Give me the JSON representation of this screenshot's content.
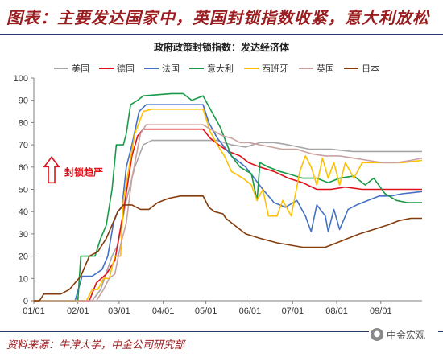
{
  "header": {
    "title": "图表：主要发达国家中，英国封锁指数收紧，意大利放松"
  },
  "footer": {
    "source": "资料来源：牛津大学，中金公司研究部",
    "brand": "中金宏观",
    "brand_icon": "wechat-icon"
  },
  "chart_data": {
    "type": "line",
    "title": "政府政策封锁指数：发达经济体",
    "xlabel": "",
    "ylabel": "",
    "ylim": [
      0,
      100
    ],
    "yticks": [
      0,
      10,
      20,
      30,
      40,
      50,
      60,
      70,
      80,
      90,
      100
    ],
    "xlim": [
      1,
      274
    ],
    "xticks": [
      {
        "label": "01/01",
        "x": 1
      },
      {
        "label": "02/01",
        "x": 32
      },
      {
        "label": "03/01",
        "x": 61
      },
      {
        "label": "04/01",
        "x": 92
      },
      {
        "label": "05/01",
        "x": 122
      },
      {
        "label": "06/01",
        "x": 153
      },
      {
        "label": "07/01",
        "x": 183
      },
      {
        "label": "08/01",
        "x": 214
      },
      {
        "label": "09/01",
        "x": 245
      }
    ],
    "grid": false,
    "legend_position": "top",
    "annotation": {
      "text": "封锁趋严",
      "x": 35,
      "y": 58,
      "color": "#e0111b"
    },
    "series": [
      {
        "name": "美国",
        "color": "#a6a6a6",
        "points": [
          [
            1,
            0
          ],
          [
            42,
            0
          ],
          [
            48,
            5
          ],
          [
            56,
            20
          ],
          [
            60,
            25
          ],
          [
            66,
            45
          ],
          [
            72,
            60
          ],
          [
            78,
            70
          ],
          [
            84,
            72
          ],
          [
            100,
            72
          ],
          [
            130,
            72
          ],
          [
            140,
            70
          ],
          [
            150,
            69
          ],
          [
            160,
            71
          ],
          [
            170,
            71
          ],
          [
            180,
            70
          ],
          [
            195,
            68
          ],
          [
            210,
            68
          ],
          [
            225,
            67
          ],
          [
            240,
            67
          ],
          [
            255,
            67
          ],
          [
            274,
            67
          ]
        ]
      },
      {
        "name": "德国",
        "color": "#e0111b",
        "points": [
          [
            1,
            0
          ],
          [
            40,
            0
          ],
          [
            45,
            8
          ],
          [
            52,
            12
          ],
          [
            58,
            18
          ],
          [
            64,
            40
          ],
          [
            70,
            65
          ],
          [
            74,
            74
          ],
          [
            78,
            77
          ],
          [
            120,
            77
          ],
          [
            125,
            73
          ],
          [
            131,
            70
          ],
          [
            138,
            67
          ],
          [
            146,
            65
          ],
          [
            152,
            62
          ],
          [
            160,
            60
          ],
          [
            170,
            58
          ],
          [
            180,
            55
          ],
          [
            190,
            53
          ],
          [
            200,
            50
          ],
          [
            210,
            50
          ],
          [
            220,
            51
          ],
          [
            232,
            50
          ],
          [
            245,
            50
          ],
          [
            260,
            50
          ],
          [
            274,
            50
          ]
        ]
      },
      {
        "name": "法国",
        "color": "#4472c4",
        "points": [
          [
            1,
            0
          ],
          [
            30,
            0
          ],
          [
            35,
            11
          ],
          [
            42,
            11
          ],
          [
            49,
            14
          ],
          [
            53,
            20
          ],
          [
            57,
            35
          ],
          [
            60,
            40
          ],
          [
            63,
            42
          ],
          [
            66,
            60
          ],
          [
            70,
            70
          ],
          [
            75,
            85
          ],
          [
            80,
            88
          ],
          [
            120,
            88
          ],
          [
            124,
            80
          ],
          [
            130,
            73
          ],
          [
            140,
            65
          ],
          [
            150,
            60
          ],
          [
            156,
            55
          ],
          [
            162,
            50
          ],
          [
            170,
            44
          ],
          [
            178,
            42
          ],
          [
            186,
            45
          ],
          [
            192,
            38
          ],
          [
            196,
            31
          ],
          [
            200,
            43
          ],
          [
            206,
            38
          ],
          [
            208,
            31
          ],
          [
            212,
            41
          ],
          [
            216,
            32
          ],
          [
            222,
            41
          ],
          [
            228,
            43
          ],
          [
            236,
            45
          ],
          [
            244,
            47
          ],
          [
            252,
            47
          ],
          [
            260,
            48
          ],
          [
            274,
            49
          ]
        ]
      },
      {
        "name": "意大利",
        "color": "#1a9a47",
        "points": [
          [
            1,
            0
          ],
          [
            32,
            0
          ],
          [
            34,
            20
          ],
          [
            44,
            20
          ],
          [
            48,
            28
          ],
          [
            52,
            34
          ],
          [
            56,
            50
          ],
          [
            59,
            70
          ],
          [
            64,
            70
          ],
          [
            66,
            75
          ],
          [
            69,
            88
          ],
          [
            74,
            90
          ],
          [
            78,
            92
          ],
          [
            98,
            93
          ],
          [
            106,
            93
          ],
          [
            112,
            90
          ],
          [
            120,
            92
          ],
          [
            126,
            85
          ],
          [
            132,
            78
          ],
          [
            140,
            65
          ],
          [
            146,
            60
          ],
          [
            154,
            57
          ],
          [
            158,
            45
          ],
          [
            160,
            62
          ],
          [
            166,
            60
          ],
          [
            174,
            58
          ],
          [
            180,
            57
          ],
          [
            190,
            55
          ],
          [
            200,
            55
          ],
          [
            208,
            53
          ],
          [
            216,
            55
          ],
          [
            226,
            56
          ],
          [
            234,
            52
          ],
          [
            240,
            55
          ],
          [
            248,
            48
          ],
          [
            256,
            45
          ],
          [
            264,
            44
          ],
          [
            274,
            44
          ]
        ]
      },
      {
        "name": "西班牙",
        "color": "#ffc000",
        "points": [
          [
            1,
            0
          ],
          [
            38,
            0
          ],
          [
            42,
            5
          ],
          [
            46,
            5
          ],
          [
            50,
            10
          ],
          [
            54,
            10
          ],
          [
            58,
            20
          ],
          [
            62,
            20
          ],
          [
            64,
            45
          ],
          [
            68,
            60
          ],
          [
            72,
            75
          ],
          [
            78,
            85
          ],
          [
            84,
            86
          ],
          [
            100,
            86
          ],
          [
            120,
            86
          ],
          [
            125,
            76
          ],
          [
            130,
            70
          ],
          [
            135,
            65
          ],
          [
            140,
            58
          ],
          [
            148,
            55
          ],
          [
            154,
            52
          ],
          [
            158,
            45
          ],
          [
            162,
            50
          ],
          [
            166,
            38
          ],
          [
            172,
            38
          ],
          [
            176,
            45
          ],
          [
            182,
            38
          ],
          [
            188,
            58
          ],
          [
            192,
            65
          ],
          [
            196,
            60
          ],
          [
            200,
            52
          ],
          [
            204,
            64
          ],
          [
            208,
            55
          ],
          [
            212,
            62
          ],
          [
            216,
            52
          ],
          [
            220,
            62
          ],
          [
            226,
            55
          ],
          [
            232,
            62
          ],
          [
            240,
            62
          ],
          [
            250,
            62
          ],
          [
            260,
            62
          ],
          [
            274,
            63
          ]
        ]
      },
      {
        "name": "英国",
        "color": "#c8a2a0",
        "points": [
          [
            1,
            0
          ],
          [
            45,
            0
          ],
          [
            50,
            5
          ],
          [
            54,
            10
          ],
          [
            58,
            12
          ],
          [
            62,
            25
          ],
          [
            66,
            35
          ],
          [
            70,
            55
          ],
          [
            76,
            75
          ],
          [
            80,
            79
          ],
          [
            100,
            79
          ],
          [
            120,
            79
          ],
          [
            128,
            76
          ],
          [
            134,
            74
          ],
          [
            140,
            73
          ],
          [
            146,
            71
          ],
          [
            152,
            71
          ],
          [
            160,
            70
          ],
          [
            168,
            69
          ],
          [
            176,
            68
          ],
          [
            186,
            68
          ],
          [
            196,
            66
          ],
          [
            206,
            65
          ],
          [
            216,
            65
          ],
          [
            226,
            64
          ],
          [
            236,
            63
          ],
          [
            246,
            62
          ],
          [
            256,
            62
          ],
          [
            266,
            63
          ],
          [
            274,
            64
          ]
        ]
      },
      {
        "name": "日本",
        "color": "#843c0c",
        "points": [
          [
            1,
            0
          ],
          [
            5,
            0
          ],
          [
            8,
            3
          ],
          [
            20,
            3
          ],
          [
            26,
            5
          ],
          [
            34,
            11
          ],
          [
            40,
            20
          ],
          [
            46,
            22
          ],
          [
            52,
            28
          ],
          [
            56,
            34
          ],
          [
            60,
            40
          ],
          [
            64,
            43
          ],
          [
            70,
            43
          ],
          [
            76,
            41
          ],
          [
            82,
            41
          ],
          [
            88,
            44
          ],
          [
            92,
            45
          ],
          [
            96,
            46
          ],
          [
            104,
            47
          ],
          [
            112,
            47
          ],
          [
            120,
            47
          ],
          [
            124,
            42
          ],
          [
            128,
            40
          ],
          [
            134,
            39
          ],
          [
            136,
            37
          ],
          [
            140,
            35
          ],
          [
            144,
            33
          ],
          [
            150,
            30
          ],
          [
            160,
            28
          ],
          [
            172,
            26
          ],
          [
            190,
            24
          ],
          [
            206,
            24
          ],
          [
            214,
            26
          ],
          [
            222,
            28
          ],
          [
            230,
            30
          ],
          [
            240,
            32
          ],
          [
            250,
            34
          ],
          [
            258,
            36
          ],
          [
            266,
            37
          ],
          [
            274,
            37
          ]
        ]
      }
    ]
  }
}
